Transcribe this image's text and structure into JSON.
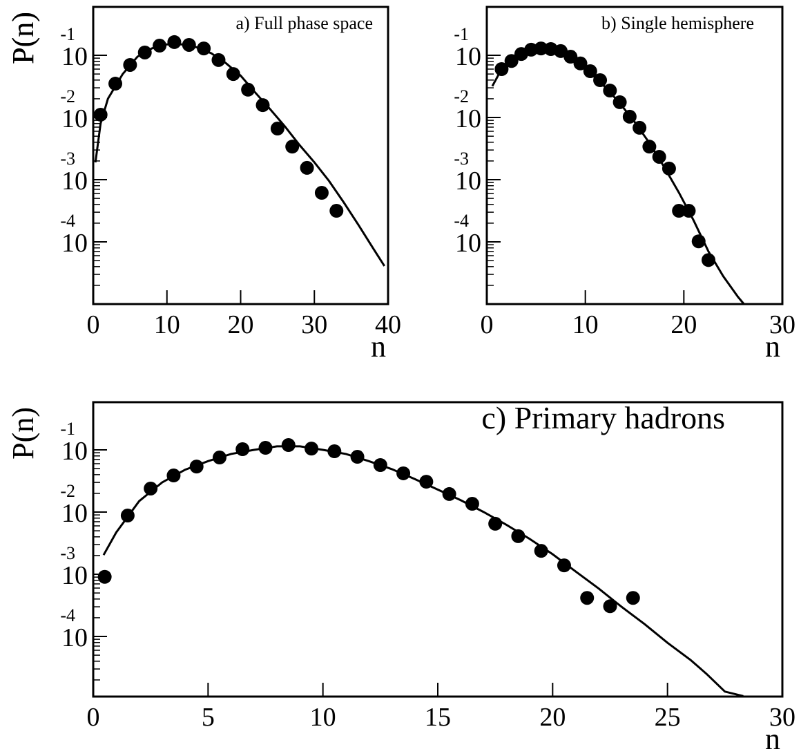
{
  "chart_data": [
    {
      "type": "line",
      "title": "a) Full phase space",
      "y_label": "P(n)",
      "x_label": "n",
      "log_y": true,
      "xlim": [
        0,
        40
      ],
      "ylim": [
        1e-05,
        0.6
      ],
      "xticks": [
        0,
        10,
        20,
        30,
        40
      ],
      "yticks": [
        {
          "value": 0.1,
          "label": "10",
          "exponent": "-1"
        },
        {
          "value": 0.01,
          "label": "10",
          "exponent": "-2"
        },
        {
          "value": 0.001,
          "label": "10",
          "exponent": "-3"
        },
        {
          "value": 0.0001,
          "label": "10",
          "exponent": "-4"
        }
      ],
      "series": [
        {
          "style": "markers",
          "color": "#000000",
          "x": [
            1,
            3,
            5,
            7,
            9,
            11,
            13,
            15,
            17,
            19,
            21,
            23,
            25,
            27,
            29,
            31,
            33
          ],
          "values": [
            0.0111,
            0.035,
            0.07,
            0.111,
            0.143,
            0.163,
            0.147,
            0.129,
            0.084,
            0.05,
            0.028,
            0.0158,
            0.00664,
            0.0034,
            0.00155,
            0.000615,
            0.000316
          ]
        },
        {
          "style": "line",
          "color": "#000000",
          "x": [
            0.3,
            1,
            2,
            4,
            6,
            8,
            10,
            12,
            14,
            16,
            18,
            20,
            22,
            24,
            26,
            28,
            30,
            32,
            34,
            36,
            38,
            39.5
          ],
          "values": [
            0.0019,
            0.008,
            0.02,
            0.05,
            0.095,
            0.13,
            0.15,
            0.15,
            0.135,
            0.108,
            0.075,
            0.047,
            0.025,
            0.0136,
            0.0072,
            0.0036,
            0.0019,
            0.00095,
            0.00043,
            0.000186,
            7.8e-05,
            4.1e-05
          ]
        }
      ]
    },
    {
      "type": "line",
      "title": "b) Single hemisphere",
      "y_label": "P(n)",
      "x_label": "n",
      "log_y": true,
      "xlim": [
        0,
        30
      ],
      "ylim": [
        1e-05,
        0.6
      ],
      "xticks": [
        0,
        10,
        20,
        30
      ],
      "yticks": [
        {
          "value": 0.1,
          "label": "10",
          "exponent": "-1"
        },
        {
          "value": 0.01,
          "label": "10",
          "exponent": "-2"
        },
        {
          "value": 0.001,
          "label": "10",
          "exponent": "-3"
        },
        {
          "value": 0.0001,
          "label": "10",
          "exponent": "-4"
        }
      ],
      "series": [
        {
          "style": "markers",
          "color": "#000000",
          "x": [
            1.5,
            2.5,
            3.5,
            4.5,
            5.5,
            6.5,
            7.5,
            8.5,
            9.5,
            10.5,
            11.5,
            12.5,
            13.5,
            14.5,
            15.5,
            16.5,
            17.5,
            18.5,
            19.5,
            20.5,
            21.5,
            22.5
          ],
          "values": [
            0.06,
            0.081,
            0.105,
            0.123,
            0.129,
            0.126,
            0.117,
            0.095,
            0.074,
            0.0555,
            0.0398,
            0.0271,
            0.0176,
            0.0103,
            0.00683,
            0.0034,
            0.00233,
            0.00151,
            0.000316,
            0.000316,
            0.000102,
            5.1e-05
          ]
        },
        {
          "style": "line",
          "color": "#000000",
          "x": [
            0.56,
            1.5,
            3,
            4.5,
            6,
            7.5,
            9,
            10.5,
            12,
            13.5,
            15,
            16.5,
            18,
            19.5,
            21,
            22.5,
            24,
            25.5,
            26.1
          ],
          "values": [
            0.032,
            0.06,
            0.1,
            0.125,
            0.125,
            0.105,
            0.078,
            0.052,
            0.031,
            0.017,
            0.0085,
            0.0039,
            0.0016,
            0.00062,
            0.00022,
            7e-05,
            2.8e-05,
            1.3e-05,
            1e-05
          ]
        }
      ]
    },
    {
      "type": "line",
      "title": "c) Primary hadrons",
      "y_label": "P(n)",
      "x_label": "n",
      "log_y": true,
      "xlim": [
        0,
        30
      ],
      "ylim": [
        1.08e-05,
        0.585
      ],
      "xticks": [
        0,
        5,
        10,
        15,
        20,
        25,
        30
      ],
      "yticks": [
        {
          "value": 0.1,
          "label": "10",
          "exponent": "-1"
        },
        {
          "value": 0.01,
          "label": "10",
          "exponent": "-2"
        },
        {
          "value": 0.001,
          "label": "10",
          "exponent": "-3"
        },
        {
          "value": 0.0001,
          "label": "10",
          "exponent": "-4"
        }
      ],
      "series": [
        {
          "style": "markers",
          "color": "#000000",
          "x": [
            0.5,
            1.5,
            2.5,
            3.5,
            4.5,
            5.5,
            6.5,
            7.5,
            8.5,
            9.5,
            10.5,
            11.5,
            12.5,
            13.5,
            14.5,
            15.5,
            16.5,
            17.5,
            18.5,
            19.5,
            20.5,
            21.5,
            22.5,
            23.5
          ],
          "values": [
            0.00091,
            0.0088,
            0.0239,
            0.0388,
            0.054,
            0.0755,
            0.1026,
            0.108,
            0.1196,
            0.105,
            0.095,
            0.0774,
            0.057,
            0.042,
            0.0308,
            0.0195,
            0.0136,
            0.0065,
            0.0041,
            0.00238,
            0.00139,
            0.000417,
            0.000306,
            0.000417
          ]
        },
        {
          "style": "line",
          "color": "#000000",
          "x": [
            0.45,
            1,
            2,
            3,
            4,
            5,
            6,
            7,
            8,
            9,
            10,
            11,
            12,
            13,
            14,
            15,
            16,
            17,
            18,
            19,
            20,
            21,
            22,
            23,
            24,
            25,
            26,
            26.7,
            27.5,
            28.3
          ],
          "values": [
            0.00204,
            0.0047,
            0.015,
            0.03,
            0.048,
            0.066,
            0.086,
            0.1,
            0.114,
            0.114,
            0.1,
            0.086,
            0.066,
            0.049,
            0.034,
            0.023,
            0.0155,
            0.01,
            0.0062,
            0.0037,
            0.0021,
            0.00111,
            0.00059,
            0.0003,
            0.000158,
            7.9e-05,
            4.2e-05,
            2.5e-05,
            1.3e-05,
            1.1e-05
          ]
        }
      ]
    }
  ]
}
